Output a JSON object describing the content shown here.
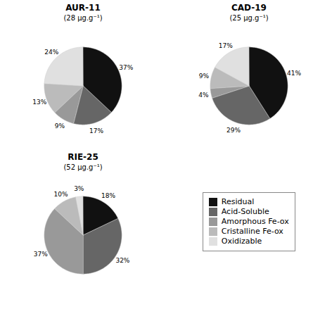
{
  "chart_data": [
    {
      "type": "pie",
      "title": "AUR-11",
      "subtitle": "(28 μg.g⁻¹)",
      "categories": [
        "Residual",
        "Acid-Soluble",
        "Amorphous Fe-ox",
        "Cristalline Fe-ox",
        "Oxidizable"
      ],
      "values": [
        37,
        17,
        9,
        13,
        24
      ],
      "value_labels": [
        "37%",
        "17%",
        "9%",
        "13%",
        "24%"
      ],
      "colors": [
        "#111111",
        "#666666",
        "#999999",
        "#bbbbbb",
        "#e0e0e0"
      ],
      "data_labels": true,
      "legend": "lower right"
    },
    {
      "type": "pie",
      "title": "CAD-19",
      "subtitle": "(25 μg.g⁻¹)",
      "categories": [
        "Residual",
        "Acid-Soluble",
        "Amorphous Fe-ox",
        "Cristalline Fe-ox",
        "Oxidizable"
      ],
      "values": [
        41,
        29,
        4,
        9,
        17
      ],
      "value_labels": [
        "41%",
        "29%",
        "4%",
        "9%",
        "17%"
      ],
      "colors": [
        "#111111",
        "#666666",
        "#999999",
        "#bbbbbb",
        "#e0e0e0"
      ],
      "data_labels": true,
      "legend": "lower right"
    },
    {
      "type": "pie",
      "title": "RIE-25",
      "subtitle": "(52 μg.g⁻¹)",
      "categories": [
        "Residual",
        "Acid-Soluble",
        "Amorphous Fe-ox",
        "Cristalline Fe-ox",
        "Oxidizable"
      ],
      "values": [
        18,
        32,
        37,
        10,
        3
      ],
      "value_labels": [
        "18%",
        "32%",
        "37%",
        "10%",
        "3%"
      ],
      "colors": [
        "#111111",
        "#666666",
        "#999999",
        "#bbbbbb",
        "#e0e0e0"
      ],
      "data_labels": true,
      "legend": "lower right"
    }
  ]
}
